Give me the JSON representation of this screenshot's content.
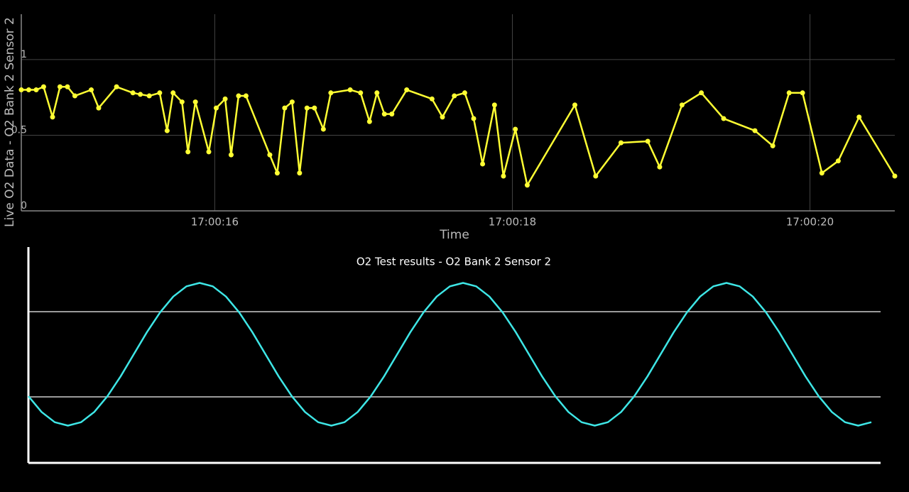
{
  "chart_data": [
    {
      "type": "line",
      "x_label": "Time",
      "y_label": "Live O2 Data - O2 Bank 2 Sensor 2",
      "x": [
        14.7,
        14.75,
        14.8,
        14.85,
        14.91,
        14.96,
        15.01,
        15.06,
        15.17,
        15.22,
        15.34,
        15.45,
        15.5,
        15.56,
        15.63,
        15.68,
        15.72,
        15.78,
        15.82,
        15.87,
        15.96,
        16.01,
        16.07,
        16.11,
        16.16,
        16.21,
        16.37,
        16.42,
        16.47,
        16.52,
        16.57,
        16.62,
        16.67,
        16.73,
        16.78,
        16.91,
        16.98,
        17.04,
        17.09,
        17.14,
        17.19,
        17.29,
        17.46,
        17.53,
        17.61,
        17.68,
        17.74,
        17.8,
        17.88,
        17.94,
        18.02,
        18.1,
        18.42,
        18.56,
        18.73,
        18.91,
        18.99,
        19.14,
        19.27,
        19.42,
        19.63,
        19.75,
        19.86,
        19.95,
        20.08,
        20.19,
        20.33,
        20.57
      ],
      "values": [
        0.8,
        0.8,
        0.8,
        0.82,
        0.62,
        0.82,
        0.82,
        0.76,
        0.8,
        0.68,
        0.82,
        0.78,
        0.77,
        0.76,
        0.78,
        0.53,
        0.78,
        0.72,
        0.39,
        0.72,
        0.39,
        0.68,
        0.74,
        0.37,
        0.76,
        0.76,
        0.37,
        0.25,
        0.68,
        0.72,
        0.25,
        0.68,
        0.68,
        0.54,
        0.78,
        0.8,
        0.78,
        0.59,
        0.78,
        0.64,
        0.64,
        0.8,
        0.74,
        0.62,
        0.76,
        0.78,
        0.61,
        0.31,
        0.7,
        0.23,
        0.54,
        0.17,
        0.7,
        0.23,
        0.45,
        0.46,
        0.29,
        0.7,
        0.78,
        0.61,
        0.53,
        0.43,
        0.78,
        0.78,
        0.25,
        0.33,
        0.62,
        0.23
      ],
      "color": "#ffff33",
      "markers": true,
      "xlim": [
        14.7,
        20.57
      ],
      "xticks": [
        {
          "value": 16,
          "label": "17:00:16"
        },
        {
          "value": 18,
          "label": "17:00:18"
        },
        {
          "value": 20,
          "label": "17:00:20"
        }
      ],
      "ylim": [
        0,
        1.3
      ],
      "yticks": [
        0,
        0.5,
        1
      ],
      "grid": true
    },
    {
      "type": "line",
      "title": "O2 Test results - O2 Bank 2 Sensor 2",
      "values": [
        0.313,
        0.239,
        0.191,
        0.175,
        0.191,
        0.239,
        0.313,
        0.406,
        0.51,
        0.614,
        0.707,
        0.781,
        0.829,
        0.845,
        0.829,
        0.781,
        0.707,
        0.614,
        0.51,
        0.406,
        0.313,
        0.239,
        0.191,
        0.175,
        0.191,
        0.239,
        0.313,
        0.406,
        0.51,
        0.614,
        0.707,
        0.781,
        0.829,
        0.845,
        0.829,
        0.781,
        0.707,
        0.614,
        0.51,
        0.406,
        0.313,
        0.239,
        0.191,
        0.175,
        0.191,
        0.239,
        0.313,
        0.406,
        0.51,
        0.614,
        0.707,
        0.781,
        0.829,
        0.845,
        0.829,
        0.781,
        0.707,
        0.614,
        0.51,
        0.406,
        0.313,
        0.239,
        0.191,
        0.175,
        0.191
      ],
      "color": "#3ee6e6",
      "markers": false,
      "ylim": [
        0,
        1
      ],
      "hlines": [
        0.71,
        0.31
      ],
      "hline_color": "#9a9a9a"
    }
  ]
}
